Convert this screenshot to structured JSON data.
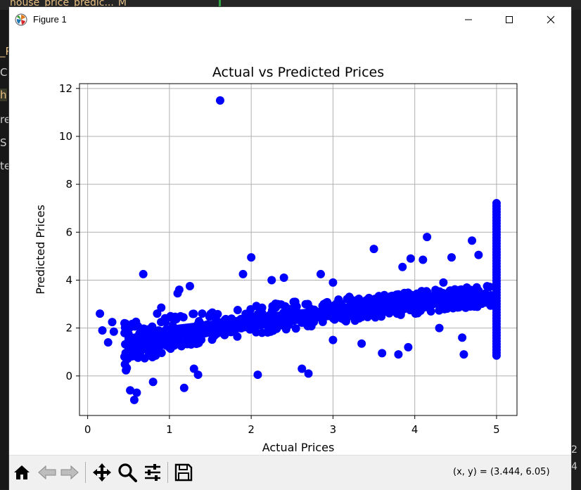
{
  "editor": {
    "tab_text": "house_price_predic...",
    "tab_marker": "M",
    "gutter_fragments": [
      "_P",
      "C",
      "h",
      "re",
      "S",
      "te"
    ],
    "right_fragments": [
      "2",
      "4"
    ]
  },
  "window": {
    "title": "Figure 1",
    "icons": {
      "app": "matplotlib-icon",
      "minimize": "minimize-icon",
      "maximize": "maximize-icon",
      "close": "close-icon"
    }
  },
  "toolbar": {
    "buttons": [
      {
        "name": "home-button",
        "icon": "home-icon"
      },
      {
        "name": "back-button",
        "icon": "back-arrow-icon"
      },
      {
        "name": "forward-button",
        "icon": "forward-arrow-icon"
      },
      {
        "name": "pan-button",
        "icon": "pan-icon"
      },
      {
        "name": "zoom-button",
        "icon": "zoom-icon"
      },
      {
        "name": "configure-subplots-button",
        "icon": "sliders-icon"
      },
      {
        "name": "save-button",
        "icon": "save-icon"
      }
    ],
    "coordinates": "(x, y) = (3.444, 6.05)"
  },
  "chart_data": {
    "type": "scatter",
    "title": "Actual vs Predicted Prices",
    "xlabel": "Actual Prices",
    "ylabel": "Predicted Prices",
    "xlim": [
      -0.1,
      5.25
    ],
    "ylim": [
      -1.65,
      12.2
    ],
    "xticks": [
      0,
      1,
      2,
      3,
      4,
      5
    ],
    "yticks": [
      0,
      2,
      4,
      6,
      8,
      10,
      12
    ],
    "grid": true,
    "marker_color": "#0000ff",
    "series": [
      {
        "points": [
          [
            0.15,
            2.6
          ],
          [
            0.18,
            1.9
          ],
          [
            0.25,
            1.4
          ],
          [
            0.3,
            2.25
          ],
          [
            0.32,
            1.85
          ],
          [
            0.45,
            0.8
          ],
          [
            0.5,
            1.75
          ],
          [
            0.55,
            2.1
          ],
          [
            0.52,
            -0.6
          ],
          [
            0.57,
            -1.0
          ],
          [
            0.6,
            -0.7
          ],
          [
            0.68,
            4.25
          ],
          [
            0.85,
            2.6
          ],
          [
            0.9,
            2.85
          ],
          [
            1.1,
            3.45
          ],
          [
            1.12,
            3.6
          ],
          [
            1.25,
            3.75
          ],
          [
            1.18,
            -0.5
          ],
          [
            1.3,
            0.3
          ],
          [
            1.62,
            11.5
          ],
          [
            1.9,
            4.25
          ],
          [
            2.0,
            4.95
          ],
          [
            2.25,
            4.0
          ],
          [
            2.4,
            4.1
          ],
          [
            2.62,
            0.3
          ],
          [
            2.7,
            0.1
          ],
          [
            2.85,
            4.25
          ],
          [
            3.0,
            3.9
          ],
          [
            3.2,
            3.3
          ],
          [
            3.5,
            5.3
          ],
          [
            3.6,
            0.95
          ],
          [
            3.85,
            4.55
          ],
          [
            3.92,
            1.2
          ],
          [
            3.95,
            4.9
          ],
          [
            4.1,
            4.85
          ],
          [
            4.15,
            5.8
          ],
          [
            4.45,
            4.95
          ],
          [
            4.6,
            0.9
          ],
          [
            4.58,
            1.6
          ],
          [
            4.7,
            5.65
          ],
          [
            4.78,
            5.05
          ],
          [
            2.08,
            0.05
          ],
          [
            1.35,
            0.05
          ],
          [
            0.8,
            -0.25
          ],
          [
            3.0,
            1.5
          ],
          [
            3.35,
            1.35
          ],
          [
            3.8,
            0.9
          ],
          [
            4.3,
            2.0
          ],
          [
            4.5,
            3.55
          ],
          [
            4.35,
            3.9
          ]
        ]
      }
    ],
    "density_band": {
      "description_free": true,
      "knots": [
        [
          0.45,
          0.55,
          1.7
        ],
        [
          0.7,
          0.95,
          1.85
        ],
        [
          1.0,
          1.3,
          2.1
        ],
        [
          1.5,
          1.65,
          2.3
        ],
        [
          2.0,
          1.9,
          2.55
        ],
        [
          2.5,
          2.15,
          2.75
        ],
        [
          3.0,
          2.35,
          2.9
        ],
        [
          3.5,
          2.55,
          3.05
        ],
        [
          4.0,
          2.75,
          3.25
        ],
        [
          4.5,
          2.95,
          3.4
        ],
        [
          4.95,
          3.05,
          3.5
        ]
      ]
    },
    "vertical_cluster": {
      "x": 5.0,
      "y_from": 0.85,
      "y_to": 7.25
    }
  }
}
